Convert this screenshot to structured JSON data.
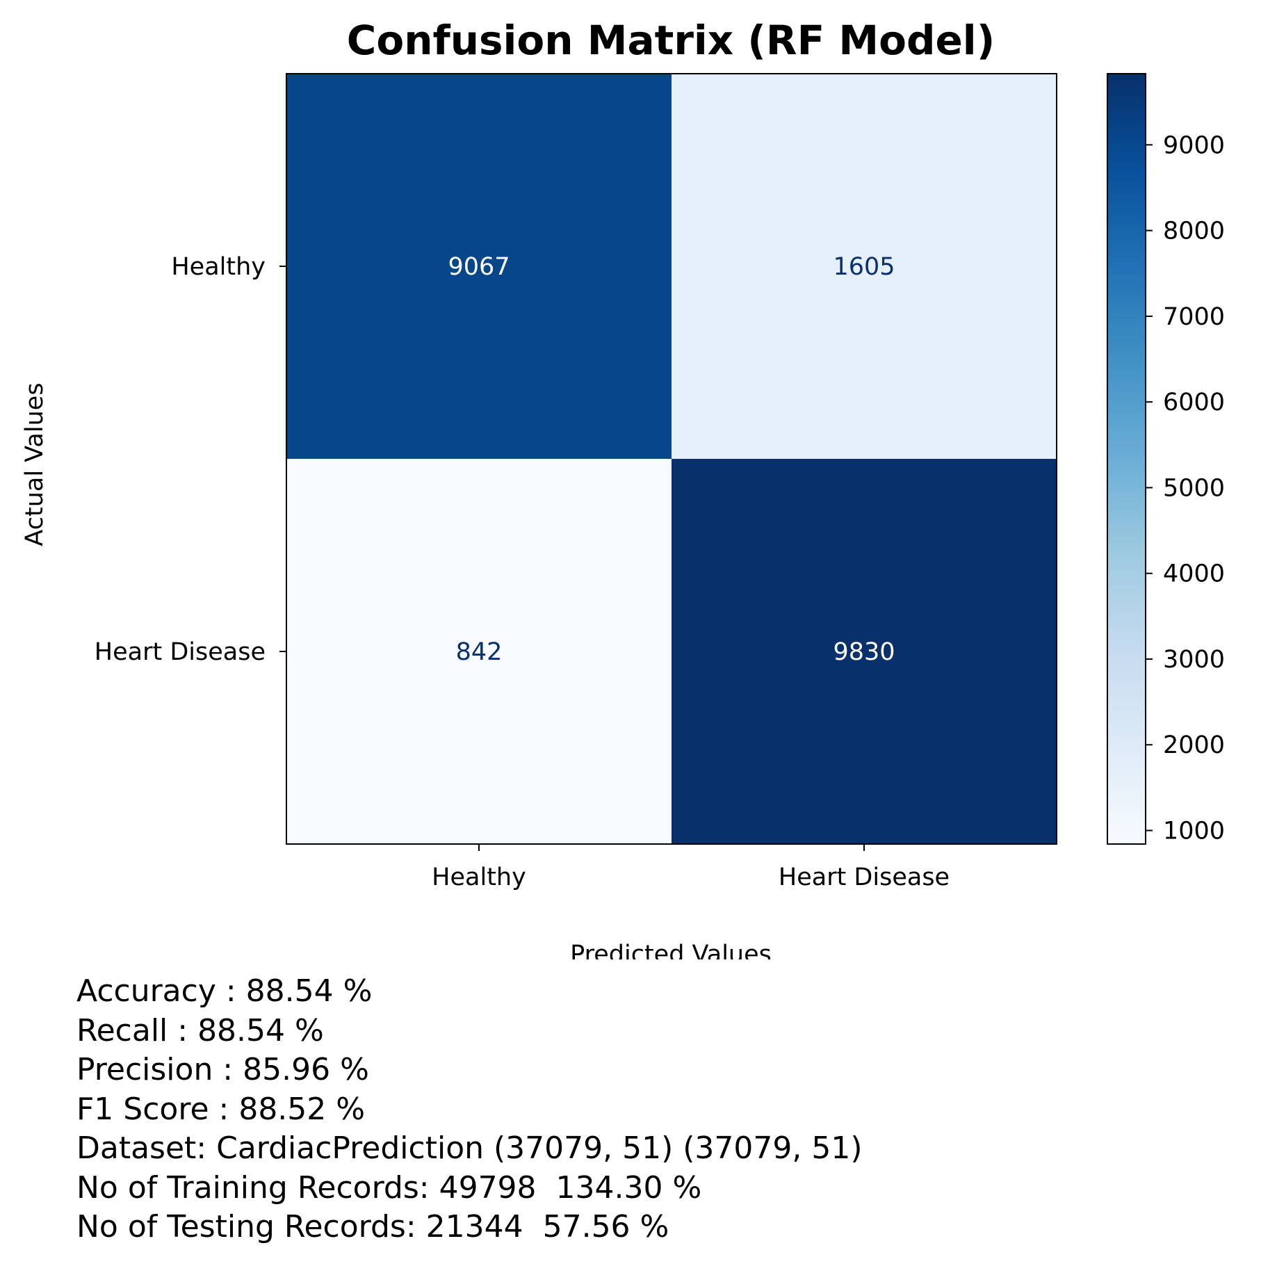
{
  "chart_data": {
    "type": "heatmap",
    "title": "Confusion Matrix (RF Model)",
    "xlabel": "Predicted Values",
    "ylabel": "Actual Values",
    "x_categories": [
      "Healthy",
      "Heart Disease"
    ],
    "y_categories": [
      "Healthy",
      "Heart Disease"
    ],
    "values": [
      [
        9067,
        1605
      ],
      [
        842,
        9830
      ]
    ],
    "colormap": "Blues",
    "colorbar": {
      "range": [
        842,
        9830
      ],
      "ticks": [
        1000,
        2000,
        3000,
        4000,
        5000,
        6000,
        7000,
        8000,
        9000
      ],
      "tick_labels": [
        "1000",
        "2000",
        "3000",
        "4000",
        "5000",
        "6000",
        "7000",
        "8000",
        "9000"
      ]
    },
    "grid": false
  },
  "metrics": [
    "Accuracy : 88.54 %",
    "Recall : 88.54 %",
    "Precision : 85.96 %",
    "F1 Score : 88.52 %",
    "Dataset: CardiacPrediction (37079, 51) (37079, 51)",
    "No of Training Records: 49798  134.30 %",
    "No of Testing Records: 21344  57.56 %"
  ]
}
